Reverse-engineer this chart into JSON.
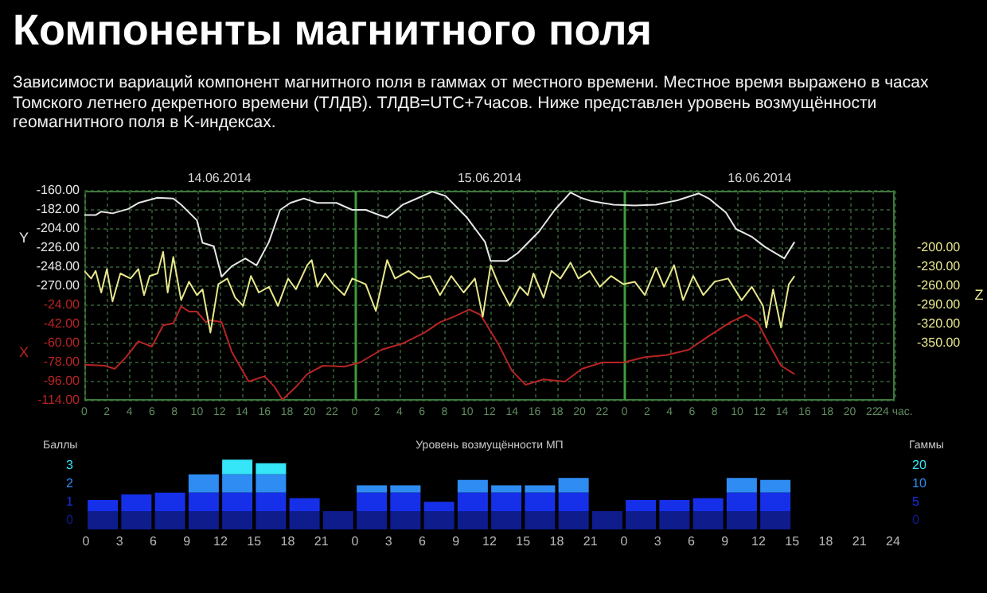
{
  "chart_data": [
    {
      "type": "line",
      "title": "Компоненты магнитного поля",
      "subtitle": "Зависимости вариаций компонент магнитного поля в гаммах от местного времени. Местное время выражено в часах Томского летнего декретного времени (ТЛДВ). ТЛДВ=UTC+7часов. Ниже представлен уровень возмущённости геомагнитного поля в K-индексах.",
      "ylabel": "Y",
      "y2label": "Z",
      "y3label": "X",
      "grid": true,
      "marker": "none",
      "xlim": [
        "2014-06-14T00:00",
        "2014-06-17T00:00"
      ],
      "xticks": [
        {
          "value": "2014-06-14T00:00",
          "label": "0"
        },
        {
          "value": "2014-06-14T02:00",
          "label": "2"
        },
        {
          "value": "2014-06-14T04:00",
          "label": "4"
        },
        {
          "value": "2014-06-14T06:00",
          "label": "6"
        },
        {
          "value": "2014-06-14T08:00",
          "label": "8"
        },
        {
          "value": "2014-06-14T10:00",
          "label": "10"
        },
        {
          "value": "2014-06-14T12:00",
          "label": "12"
        },
        {
          "value": "2014-06-14T14:00",
          "label": "14"
        },
        {
          "value": "2014-06-14T16:00",
          "label": "16"
        },
        {
          "value": "2014-06-14T18:00",
          "label": "18"
        },
        {
          "value": "2014-06-14T20:00",
          "label": "20"
        },
        {
          "value": "2014-06-14T22:00",
          "label": "22"
        },
        {
          "value": "2014-06-15T00:00",
          "label": "0"
        },
        {
          "value": "2014-06-15T02:00",
          "label": "2"
        },
        {
          "value": "2014-06-15T04:00",
          "label": "4"
        },
        {
          "value": "2014-06-15T06:00",
          "label": "6"
        },
        {
          "value": "2014-06-15T08:00",
          "label": "8"
        },
        {
          "value": "2014-06-15T10:00",
          "label": "10"
        },
        {
          "value": "2014-06-15T12:00",
          "label": "12"
        },
        {
          "value": "2014-06-15T14:00",
          "label": "14"
        },
        {
          "value": "2014-06-15T16:00",
          "label": "16"
        },
        {
          "value": "2014-06-15T18:00",
          "label": "18"
        },
        {
          "value": "2014-06-15T20:00",
          "label": "20"
        },
        {
          "value": "2014-06-15T22:00",
          "label": "22"
        },
        {
          "value": "2014-06-16T00:00",
          "label": "0"
        },
        {
          "value": "2014-06-16T02:00",
          "label": "2"
        },
        {
          "value": "2014-06-16T04:00",
          "label": "4"
        },
        {
          "value": "2014-06-16T06:00",
          "label": "6"
        },
        {
          "value": "2014-06-16T08:00",
          "label": "8"
        },
        {
          "value": "2014-06-16T10:00",
          "label": "10"
        },
        {
          "value": "2014-06-16T12:00",
          "label": "12"
        },
        {
          "value": "2014-06-16T14:00",
          "label": "14"
        },
        {
          "value": "2014-06-16T16:00",
          "label": "16"
        },
        {
          "value": "2014-06-16T18:00",
          "label": "18"
        },
        {
          "value": "2014-06-16T20:00",
          "label": "20"
        },
        {
          "value": "2014-06-16T22:00",
          "label": "22"
        },
        {
          "value": "2014-06-17T00:00",
          "label": "24 час."
        }
      ],
      "x2lim": [
        "2014-06-14T00:00",
        "2014-06-17T00:00"
      ],
      "x2ticks": [
        {
          "value": "2014-06-14T12:00",
          "label": "14.06.2014"
        },
        {
          "value": "2014-06-15T12:00",
          "label": "15.06.2014"
        },
        {
          "value": "2014-06-16T12:00",
          "label": "16.06.2014"
        }
      ],
      "ylim": [
        -402,
        -160
      ],
      "yticks": [
        {
          "value": -160,
          "label": "-160.00"
        },
        {
          "value": -182,
          "label": "-182.00"
        },
        {
          "value": -204,
          "label": "-204.00"
        },
        {
          "value": -226,
          "label": "-226.00"
        },
        {
          "value": -248,
          "label": "-248.00"
        },
        {
          "value": -270,
          "label": "-270.00"
        }
      ],
      "y3lim": [
        -114,
        84
      ],
      "y3ticks": [
        {
          "value": -24,
          "label": "-24.00"
        },
        {
          "value": -42,
          "label": "-42.00"
        },
        {
          "value": -60,
          "label": "-60.00"
        },
        {
          "value": -78,
          "label": "-78.00"
        },
        {
          "value": -96,
          "label": "-96.00"
        },
        {
          "value": -114,
          "label": "-114.00"
        }
      ],
      "y2lim": [
        -440,
        -110
      ],
      "y2ticks": [
        {
          "value": -200,
          "label": "-200.00"
        },
        {
          "value": -230,
          "label": "-230.00"
        },
        {
          "value": -260,
          "label": "-260.00"
        },
        {
          "value": -290,
          "label": "-290.00"
        },
        {
          "value": -320,
          "label": "-320.00"
        },
        {
          "value": -350,
          "label": "-350.00"
        }
      ],
      "series": [
        {
          "color": "#e6e6e6",
          "axis": "y",
          "x": [
            "2014-06-14T00:00",
            "2014-06-14T01:00",
            "2014-06-14T01:30",
            "2014-06-14T02:30",
            "2014-06-14T03:54",
            "2014-06-14T04:48",
            "2014-06-14T06:30",
            "2014-06-14T07:54",
            "2014-06-14T08:36",
            "2014-06-14T10:00",
            "2014-06-14T10:30",
            "2014-06-14T11:30",
            "2014-06-14T12:12",
            "2014-06-14T13:06",
            "2014-06-14T14:18",
            "2014-06-14T15:18",
            "2014-06-14T16:24",
            "2014-06-14T17:24",
            "2014-06-14T18:18",
            "2014-06-14T19:30",
            "2014-06-14T20:42",
            "2014-06-14T22:24",
            "2014-06-14T23:48",
            "2014-06-15T01:00",
            "2014-06-15T02:12",
            "2014-06-15T02:54",
            "2014-06-15T04:18",
            "2014-06-15T05:42",
            "2014-06-15T06:54",
            "2014-06-15T08:06",
            "2014-06-15T10:00",
            "2014-06-15T11:36",
            "2014-06-15T12:06",
            "2014-06-15T13:30",
            "2014-06-15T14:30",
            "2014-06-15T16:24",
            "2014-06-15T17:48",
            "2014-06-15T19:12",
            "2014-06-15T20:06",
            "2014-06-15T21:06",
            "2014-06-15T23:00",
            "2014-06-16T00:54",
            "2014-06-16T02:48",
            "2014-06-16T04:42",
            "2014-06-16T06:36",
            "2014-06-16T07:30",
            "2014-06-16T09:00",
            "2014-06-16T09:54",
            "2014-06-16T11:18",
            "2014-06-16T12:30",
            "2014-06-16T14:12",
            "2014-06-16T15:06"
          ],
          "values": [
            -188,
            -188,
            -184,
            -186,
            -181,
            -174,
            -168,
            -169,
            -176,
            -194,
            -220,
            -224,
            -259,
            -247,
            -238,
            -246,
            -219,
            -182,
            -174,
            -169,
            -174,
            -174,
            -182,
            -182,
            -188,
            -191,
            -176,
            -168,
            -161,
            -166,
            -191,
            -219,
            -241,
            -241,
            -232,
            -207,
            -182,
            -162,
            -168,
            -172,
            -176,
            -177,
            -176,
            -171,
            -163,
            -169,
            -185,
            -204,
            -213,
            -225,
            -238,
            -219
          ]
        },
        {
          "color": "#e8e88c",
          "axis": "y2",
          "x": [
            "2014-06-14T00:00",
            "2014-06-14T00:36",
            "2014-06-14T01:00",
            "2014-06-14T01:30",
            "2014-06-14T02:00",
            "2014-06-14T02:30",
            "2014-06-14T03:12",
            "2014-06-14T04:06",
            "2014-06-14T04:48",
            "2014-06-14T05:18",
            "2014-06-14T05:48",
            "2014-06-14T06:30",
            "2014-06-14T07:00",
            "2014-06-14T07:24",
            "2014-06-14T07:54",
            "2014-06-14T08:36",
            "2014-06-14T09:18",
            "2014-06-14T10:00",
            "2014-06-14T10:30",
            "2014-06-14T11:12",
            "2014-06-14T11:54",
            "2014-06-14T12:42",
            "2014-06-14T13:24",
            "2014-06-14T14:06",
            "2014-06-14T14:48",
            "2014-06-14T15:30",
            "2014-06-14T16:24",
            "2014-06-14T17:12",
            "2014-06-14T18:06",
            "2014-06-14T18:48",
            "2014-06-14T19:48",
            "2014-06-14T20:12",
            "2014-06-14T20:42",
            "2014-06-14T21:24",
            "2014-06-14T22:06",
            "2014-06-14T23:06",
            "2014-06-14T23:48",
            "2014-06-15T01:00",
            "2014-06-15T01:54",
            "2014-06-15T02:54",
            "2014-06-15T03:36",
            "2014-06-15T04:48",
            "2014-06-15T05:42",
            "2014-06-15T06:42",
            "2014-06-15T07:36",
            "2014-06-15T08:36",
            "2014-06-15T09:42",
            "2014-06-15T10:42",
            "2014-06-15T11:24",
            "2014-06-15T12:06",
            "2014-06-15T12:48",
            "2014-06-15T13:48",
            "2014-06-15T14:42",
            "2014-06-15T15:24",
            "2014-06-15T15:54",
            "2014-06-15T16:48",
            "2014-06-15T17:30",
            "2014-06-15T18:18",
            "2014-06-15T19:12",
            "2014-06-15T19:54",
            "2014-06-15T20:54",
            "2014-06-15T21:48",
            "2014-06-15T22:48",
            "2014-06-15T23:54",
            "2014-06-16T00:54",
            "2014-06-16T01:48",
            "2014-06-16T02:48",
            "2014-06-16T03:30",
            "2014-06-16T04:24",
            "2014-06-16T05:12",
            "2014-06-16T06:06",
            "2014-06-16T07:00",
            "2014-06-16T08:00",
            "2014-06-16T09:12",
            "2014-06-16T10:24",
            "2014-06-16T11:18",
            "2014-06-16T12:18",
            "2014-06-16T12:36",
            "2014-06-16T13:12",
            "2014-06-16T13:54",
            "2014-06-16T14:36",
            "2014-06-16T15:06"
          ],
          "values": [
            -236,
            -248,
            -236,
            -270,
            -233,
            -284,
            -240,
            -248,
            -233,
            -274,
            -244,
            -240,
            -206,
            -270,
            -214,
            -282,
            -253,
            -274,
            -265,
            -333,
            -257,
            -248,
            -278,
            -291,
            -244,
            -270,
            -261,
            -291,
            -248,
            -265,
            -227,
            -219,
            -261,
            -240,
            -257,
            -274,
            -248,
            -257,
            -299,
            -219,
            -248,
            -236,
            -248,
            -244,
            -274,
            -244,
            -270,
            -248,
            -308,
            -227,
            -257,
            -291,
            -261,
            -274,
            -240,
            -278,
            -236,
            -248,
            -223,
            -248,
            -236,
            -261,
            -244,
            -257,
            -253,
            -274,
            -231,
            -261,
            -227,
            -282,
            -244,
            -274,
            -253,
            -248,
            -282,
            -261,
            -291,
            -325,
            -265,
            -325,
            -257,
            -244
          ]
        },
        {
          "color": "#b82424",
          "axis": "y3",
          "x": [
            "2014-06-14T00:00",
            "2014-06-14T01:48",
            "2014-06-14T02:42",
            "2014-06-14T03:42",
            "2014-06-14T04:48",
            "2014-06-14T06:00",
            "2014-06-14T07:00",
            "2014-06-14T07:54",
            "2014-06-14T08:36",
            "2014-06-14T09:18",
            "2014-06-14T10:00",
            "2014-06-14T10:48",
            "2014-06-14T11:12",
            "2014-06-14T12:12",
            "2014-06-14T13:06",
            "2014-06-14T14:36",
            "2014-06-14T16:00",
            "2014-06-14T16:54",
            "2014-06-14T17:36",
            "2014-06-14T18:48",
            "2014-06-14T19:48",
            "2014-06-14T21:12",
            "2014-06-14T23:06",
            "2014-06-15T00:30",
            "2014-06-15T02:24",
            "2014-06-15T04:18",
            "2014-06-15T06:12",
            "2014-06-15T07:36",
            "2014-06-15T08:48",
            "2014-06-15T10:12",
            "2014-06-15T11:12",
            "2014-06-15T11:36",
            "2014-06-15T12:48",
            "2014-06-15T14:00",
            "2014-06-15T15:12",
            "2014-06-15T16:48",
            "2014-06-15T18:42",
            "2014-06-15T20:12",
            "2014-06-15T22:00",
            "2014-06-15T23:54",
            "2014-06-16T01:48",
            "2014-06-16T03:42",
            "2014-06-16T05:42",
            "2014-06-16T07:30",
            "2014-06-16T09:24",
            "2014-06-16T10:48",
            "2014-06-16T11:48",
            "2014-06-16T12:42",
            "2014-06-16T13:54",
            "2014-06-16T15:06"
          ],
          "values": [
            -80,
            -81,
            -84,
            -73,
            -58,
            -63,
            -43,
            -41,
            -25,
            -30,
            -30,
            -40,
            -38,
            -40,
            -68,
            -96,
            -91,
            -101,
            -113,
            -101,
            -89,
            -81,
            -82,
            -78,
            -66,
            -60,
            -50,
            -40,
            -35,
            -28,
            -33,
            -40,
            -61,
            -86,
            -99,
            -94,
            -96,
            -84,
            -78,
            -78,
            -73,
            -71,
            -66,
            -53,
            -40,
            -33,
            -40,
            -58,
            -81,
            -89
          ]
        }
      ]
    },
    {
      "type": "bar",
      "title": "Уровень возмущённости МП",
      "ylabel": "Баллы",
      "y2label": "Гаммы",
      "stacked": true,
      "grid": false,
      "x": [
        "2014-06-14T01:30",
        "2014-06-14T04:30",
        "2014-06-14T07:30",
        "2014-06-14T10:30",
        "2014-06-14T13:30",
        "2014-06-14T16:30",
        "2014-06-14T19:30",
        "2014-06-14T22:30",
        "2014-06-15T01:30",
        "2014-06-15T04:30",
        "2014-06-15T07:30",
        "2014-06-15T10:30",
        "2014-06-15T13:30",
        "2014-06-15T16:30",
        "2014-06-15T19:30",
        "2014-06-15T22:30",
        "2014-06-16T01:30",
        "2014-06-16T04:30",
        "2014-06-16T07:30",
        "2014-06-16T10:30",
        "2014-06-16T13:30"
      ],
      "xlim": [
        "2014-06-14T00:00",
        "2014-06-17T00:00"
      ],
      "xticks": [
        {
          "value": "2014-06-14T00:00",
          "label": "0"
        },
        {
          "value": "2014-06-14T03:00",
          "label": "3"
        },
        {
          "value": "2014-06-14T06:00",
          "label": "6"
        },
        {
          "value": "2014-06-14T09:00",
          "label": "9"
        },
        {
          "value": "2014-06-14T12:00",
          "label": "12"
        },
        {
          "value": "2014-06-14T15:00",
          "label": "15"
        },
        {
          "value": "2014-06-14T18:00",
          "label": "18"
        },
        {
          "value": "2014-06-14T21:00",
          "label": "21"
        },
        {
          "value": "2014-06-15T00:00",
          "label": "0"
        },
        {
          "value": "2014-06-15T03:00",
          "label": "3"
        },
        {
          "value": "2014-06-15T06:00",
          "label": "6"
        },
        {
          "value": "2014-06-15T09:00",
          "label": "9"
        },
        {
          "value": "2014-06-15T12:00",
          "label": "12"
        },
        {
          "value": "2014-06-15T15:00",
          "label": "15"
        },
        {
          "value": "2014-06-15T18:00",
          "label": "18"
        },
        {
          "value": "2014-06-15T21:00",
          "label": "21"
        },
        {
          "value": "2014-06-16T00:00",
          "label": "0"
        },
        {
          "value": "2014-06-16T03:00",
          "label": "3"
        },
        {
          "value": "2014-06-16T06:00",
          "label": "6"
        },
        {
          "value": "2014-06-16T09:00",
          "label": "9"
        },
        {
          "value": "2014-06-16T12:00",
          "label": "12"
        },
        {
          "value": "2014-06-16T15:00",
          "label": "15"
        },
        {
          "value": "2014-06-16T18:00",
          "label": "18"
        },
        {
          "value": "2014-06-16T21:00",
          "label": "21"
        },
        {
          "value": "2014-06-17T00:00",
          "label": "24"
        }
      ],
      "ylim": [
        0,
        4
      ],
      "yticks": [
        {
          "value": 0.5,
          "label": "0"
        },
        {
          "value": 1.5,
          "label": "1"
        },
        {
          "value": 2.5,
          "label": "2"
        },
        {
          "value": 3.5,
          "label": "3"
        }
      ],
      "annotations": [
        "0",
        "5",
        "10",
        "20"
      ],
      "series": [
        {
          "color": "#0e1c8c",
          "values": [
            1,
            1,
            1,
            1,
            1,
            1,
            1,
            1,
            1,
            1,
            1,
            1,
            1,
            1,
            1,
            1,
            1,
            1,
            1,
            1,
            1
          ]
        },
        {
          "color": "#1630ea",
          "values": [
            0.6,
            0.9,
            1,
            1,
            1,
            1,
            0.7,
            0,
            1,
            1,
            0.5,
            1,
            1,
            1,
            1,
            0,
            0.6,
            0.6,
            0.7,
            1,
            1
          ]
        },
        {
          "color": "#2e8cf2",
          "values": [
            0,
            0,
            0,
            1,
            1,
            1,
            0,
            0,
            0.4,
            0.4,
            0,
            0.7,
            0.4,
            0.4,
            0.8,
            0,
            0,
            0,
            0,
            0.8,
            0.7
          ]
        },
        {
          "color": "#34e6f8",
          "values": [
            0,
            0,
            0,
            0,
            0.8,
            0.6,
            0,
            0,
            0,
            0,
            0,
            0,
            0,
            0,
            0,
            0,
            0,
            0,
            0,
            0,
            0
          ]
        }
      ]
    }
  ]
}
